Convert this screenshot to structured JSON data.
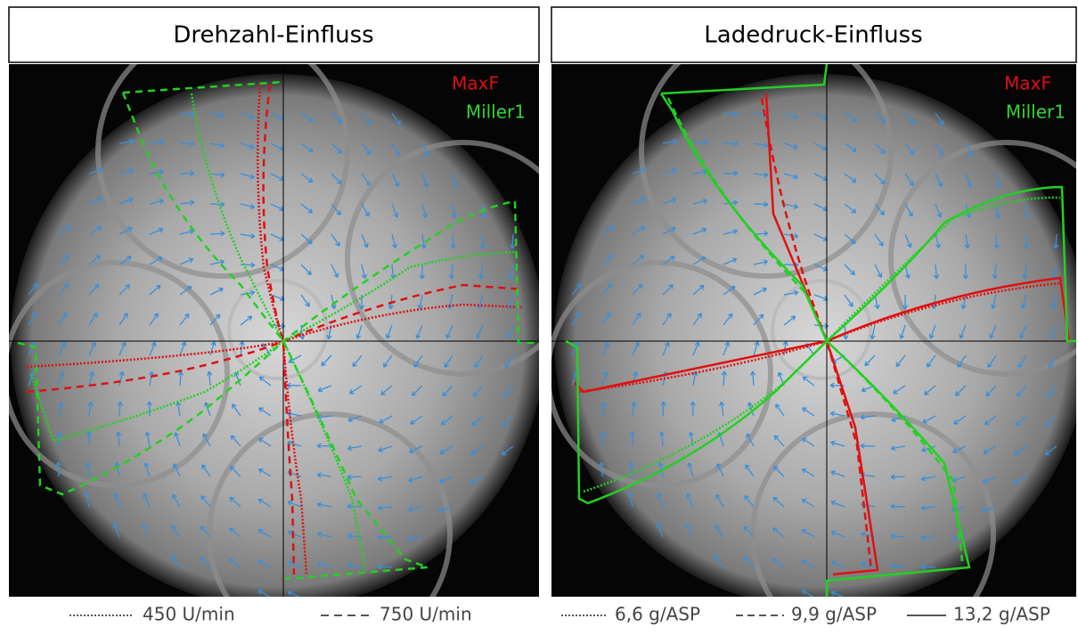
{
  "panels": [
    {
      "title": "Drehzahl-Einfluss",
      "series": [
        "MaxF",
        "Miller1"
      ]
    },
    {
      "title": "Ladedruck-Einfluss",
      "series": [
        "MaxF",
        "Miller1"
      ]
    }
  ],
  "legends": [
    [
      "450 U/min",
      "750 U/min"
    ],
    [
      "6,6 g/ASP",
      "9,9 g/ASP",
      "13,2 g/ASP"
    ]
  ]
}
